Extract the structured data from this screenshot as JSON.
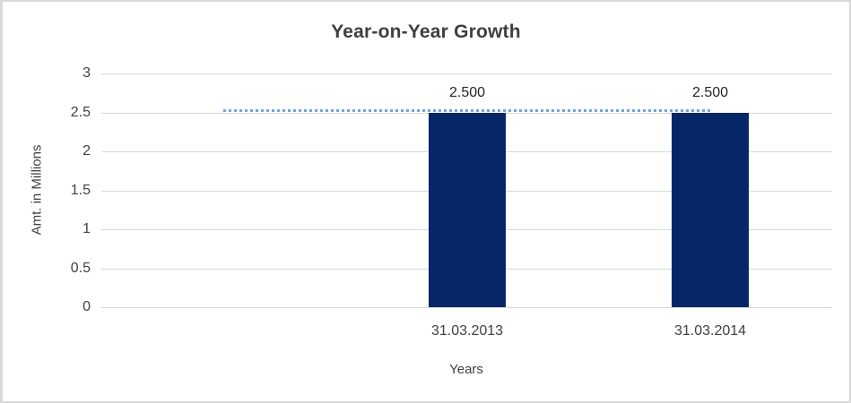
{
  "frame": {
    "background": "#ffffff",
    "border_color": "#d9d9d9"
  },
  "chart_data": {
    "type": "bar",
    "title": "Year-on-Year Growth",
    "xlabel": "Years",
    "ylabel": "Amt. in Millions",
    "categories": [
      "",
      "31.03.2013",
      "31.03.2014"
    ],
    "series": [
      {
        "name": "amount-bars",
        "type": "bar",
        "values": [
          null,
          2.5,
          2.5
        ],
        "data_labels": [
          null,
          "2.500",
          "2.500"
        ],
        "color": "#052667"
      },
      {
        "name": "reference-dotted-line",
        "type": "line",
        "style": "dotted",
        "values": [
          2.5,
          2.5,
          2.5
        ],
        "color": "#74a5da"
      }
    ],
    "ylim": [
      0,
      3
    ],
    "yticks": [
      "3",
      "2.5",
      "2",
      "1.5",
      "1",
      "0.5",
      "0"
    ],
    "ytick_values": [
      3,
      2.5,
      2,
      1.5,
      1,
      0.5,
      0
    ],
    "grid": true,
    "legend": "none",
    "colors": {
      "gridline": "#d9d9d9",
      "axis_text": "#404040",
      "title_text": "#3f3f3f"
    }
  }
}
